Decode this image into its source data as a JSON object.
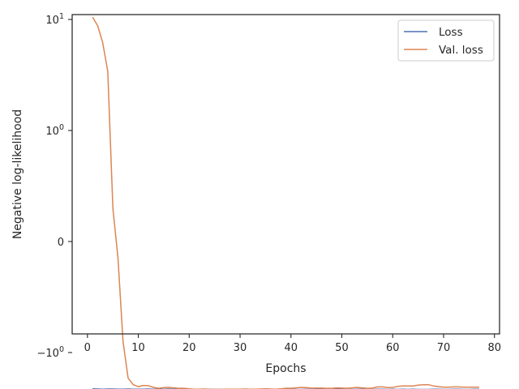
{
  "chart_data": {
    "type": "line",
    "xlabel": "Epochs",
    "ylabel": "Negative log-likelihood",
    "xlim": [
      -3,
      81
    ],
    "x_ticks": [
      0,
      10,
      20,
      30,
      40,
      50,
      60,
      70,
      80
    ],
    "y_scale": "symlog",
    "y_ticks": [
      {
        "value": 10,
        "base": "10",
        "exp": "1"
      },
      {
        "value": 1,
        "base": "10",
        "exp": "0"
      },
      {
        "value": 0,
        "base": "0",
        "exp": ""
      },
      {
        "value": -1,
        "base": "−10",
        "exp": "0"
      }
    ],
    "legend": {
      "position": "upper right"
    },
    "series": [
      {
        "name": "Loss",
        "color": "#4c72b0",
        "x": [
          1,
          2,
          3,
          4,
          5,
          6,
          7,
          8,
          9,
          10,
          11,
          12,
          13,
          14,
          15,
          16,
          17,
          18,
          19,
          20,
          21,
          22,
          23,
          24,
          25,
          26,
          27,
          28,
          29,
          30,
          31,
          32,
          33,
          34,
          35,
          36,
          37,
          38,
          39,
          40,
          41,
          42,
          43,
          44,
          45,
          46,
          47,
          48,
          49,
          50,
          51,
          52,
          53,
          54,
          55,
          56,
          57,
          58,
          59,
          60,
          61,
          62,
          63,
          64,
          65,
          66,
          67,
          68,
          69,
          70,
          71,
          72,
          73,
          74,
          75,
          76,
          77
        ],
        "y": [
          -2.12,
          -2.13,
          -2.14,
          -2.13,
          -2.13,
          -2.14,
          -2.14,
          -2.13,
          -2.14,
          -2.14,
          -2.14,
          -2.13,
          -2.14,
          -2.14,
          -2.14,
          -2.13,
          -2.14,
          -2.15,
          -2.13,
          -2.14,
          -2.14,
          -2.15,
          -2.15,
          -2.14,
          -2.15,
          -2.15,
          -2.15,
          -2.14,
          -2.14,
          -2.15,
          -2.14,
          -2.14,
          -2.15,
          -2.15,
          -2.13,
          -2.14,
          -2.15,
          -2.15,
          -2.13,
          -2.14,
          -2.15,
          -2.15,
          -2.14,
          -2.15,
          -2.14,
          -2.14,
          -2.15,
          -2.15,
          -2.14,
          -2.14,
          -2.15,
          -2.15,
          -2.14,
          -2.14,
          -2.15,
          -2.15,
          -2.14,
          -2.14,
          -2.15,
          -2.14,
          -2.15,
          -2.14,
          -2.15,
          -2.14,
          -2.15,
          -2.15,
          -2.15,
          -2.14,
          -2.14,
          -2.15,
          -2.15,
          -2.14,
          -2.14,
          -2.15,
          -2.15,
          -2.14,
          -2.14
        ]
      },
      {
        "name": "Val. loss",
        "color": "#dd8452",
        "x": [
          1,
          2,
          3,
          4,
          5,
          6,
          7,
          8,
          9,
          10,
          11,
          12,
          13,
          14,
          15,
          16,
          17,
          18,
          19,
          20,
          21,
          22,
          23,
          24,
          25,
          26,
          27,
          28,
          29,
          30,
          31,
          32,
          33,
          34,
          35,
          36,
          37,
          38,
          39,
          40,
          41,
          42,
          43,
          44,
          45,
          46,
          47,
          48,
          49,
          50,
          51,
          52,
          53,
          54,
          55,
          56,
          57,
          58,
          59,
          60,
          61,
          62,
          63,
          64,
          65,
          66,
          67,
          68,
          69,
          70,
          71,
          72,
          73,
          74,
          75,
          76,
          77
        ],
        "y": [
          10.5,
          8.8,
          6.2,
          3.4,
          0.3,
          -0.15,
          -0.9,
          -1.7,
          -1.95,
          -2.03,
          -1.98,
          -1.99,
          -2.06,
          -2.1,
          -2.07,
          -2.06,
          -2.08,
          -2.1,
          -2.1,
          -2.12,
          -2.14,
          -2.14,
          -2.13,
          -2.14,
          -2.15,
          -2.15,
          -2.14,
          -2.14,
          -2.14,
          -2.14,
          -2.13,
          -2.14,
          -2.14,
          -2.13,
          -2.12,
          -2.13,
          -2.14,
          -2.12,
          -2.1,
          -2.1,
          -2.08,
          -2.06,
          -2.07,
          -2.09,
          -2.09,
          -2.09,
          -2.1,
          -2.1,
          -2.08,
          -2.09,
          -2.1,
          -2.08,
          -2.06,
          -2.08,
          -2.1,
          -2.09,
          -2.04,
          -2.04,
          -2.07,
          -2.06,
          -2.02,
          -2.0,
          -2.0,
          -2.0,
          -1.97,
          -1.95,
          -1.95,
          -2.0,
          -2.03,
          -2.05,
          -2.05,
          -2.04,
          -2.04,
          -2.05,
          -2.05,
          -2.05,
          -2.05
        ]
      }
    ]
  }
}
